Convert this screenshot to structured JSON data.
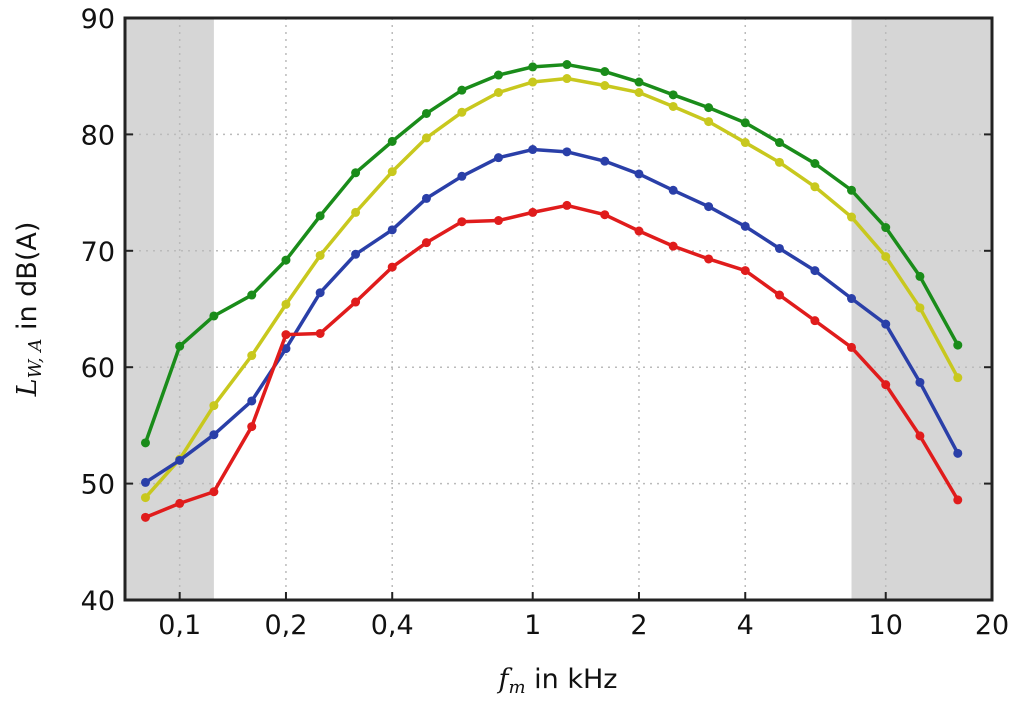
{
  "chart_data": {
    "type": "line",
    "title": "",
    "xlabel": {
      "var": "f",
      "sub": "m",
      "rest": " in kHz"
    },
    "ylabel": {
      "var": "L",
      "sub": "W, A",
      "rest": " in dB(A)"
    },
    "xscale": "log",
    "xlim": [
      0.07,
      20
    ],
    "ylim": [
      40,
      90
    ],
    "grid": true,
    "xticks": [
      {
        "v": 0.1,
        "label": "0,1"
      },
      {
        "v": 0.2,
        "label": "0,2"
      },
      {
        "v": 0.4,
        "label": "0,4"
      },
      {
        "v": 1,
        "label": "1"
      },
      {
        "v": 2,
        "label": "2"
      },
      {
        "v": 4,
        "label": "4"
      },
      {
        "v": 10,
        "label": "10"
      },
      {
        "v": 20,
        "label": "20"
      }
    ],
    "yticks": [
      {
        "v": 40,
        "label": "40"
      },
      {
        "v": 50,
        "label": "50"
      },
      {
        "v": 60,
        "label": "60"
      },
      {
        "v": 70,
        "label": "70"
      },
      {
        "v": 80,
        "label": "80"
      },
      {
        "v": 90,
        "label": "90"
      }
    ],
    "shaded_ranges": [
      [
        0.07,
        0.125
      ],
      [
        8,
        20
      ]
    ],
    "shade_color": "#d6d6d6",
    "x": [
      0.08,
      0.1,
      0.125,
      0.16,
      0.2,
      0.25,
      0.315,
      0.4,
      0.5,
      0.63,
      0.8,
      1,
      1.25,
      1.6,
      2,
      2.5,
      3.15,
      4,
      5,
      6.3,
      8,
      10,
      12.5,
      16
    ],
    "series": [
      {
        "name": "green",
        "color": "#1a8c1a",
        "values": [
          53.5,
          61.8,
          64.4,
          66.2,
          69.2,
          73.0,
          76.7,
          79.4,
          81.8,
          83.8,
          85.1,
          85.8,
          86.0,
          85.4,
          84.5,
          83.4,
          82.3,
          81.0,
          79.3,
          77.5,
          75.2,
          72.0,
          67.8,
          61.9
        ]
      },
      {
        "name": "yellow",
        "color": "#c8c81e",
        "values": [
          48.8,
          52.1,
          56.7,
          61.0,
          65.4,
          69.6,
          73.3,
          76.8,
          79.7,
          81.9,
          83.6,
          84.5,
          84.8,
          84.2,
          83.6,
          82.4,
          81.1,
          79.3,
          77.6,
          75.5,
          72.9,
          69.5,
          65.1,
          59.1
        ]
      },
      {
        "name": "blue",
        "color": "#2a3fa8",
        "values": [
          50.1,
          52.0,
          54.2,
          57.1,
          61.6,
          66.4,
          69.7,
          71.8,
          74.5,
          76.4,
          78.0,
          78.7,
          78.5,
          77.7,
          76.6,
          75.2,
          73.8,
          72.1,
          70.2,
          68.3,
          65.9,
          63.7,
          58.7,
          52.6
        ]
      },
      {
        "name": "red",
        "color": "#e01c1c",
        "values": [
          47.1,
          48.3,
          49.3,
          54.9,
          62.8,
          62.9,
          65.6,
          68.6,
          70.7,
          72.5,
          72.6,
          73.3,
          73.9,
          73.1,
          71.7,
          70.4,
          69.3,
          68.3,
          66.2,
          64.0,
          61.7,
          58.5,
          54.1,
          48.6
        ]
      }
    ]
  }
}
